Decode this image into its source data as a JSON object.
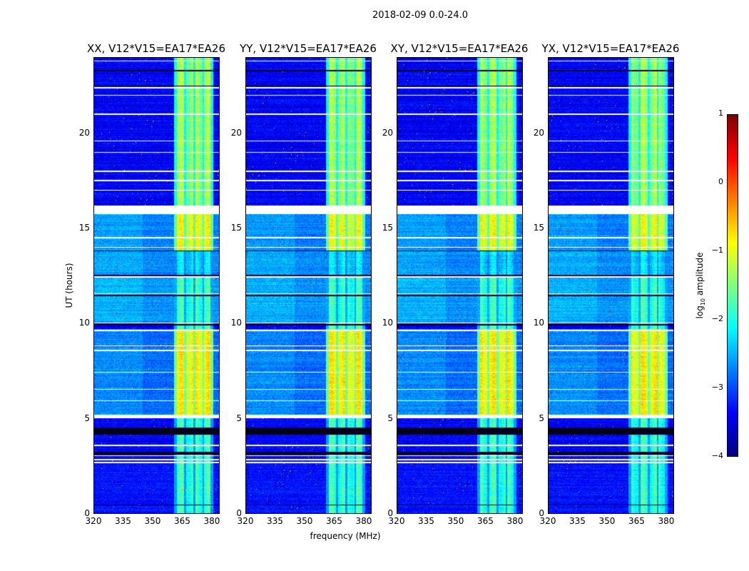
{
  "chart_data": {
    "type": "heatmap",
    "title": "2018-02-09 0.0-24.0",
    "panels": [
      {
        "title": "XX, V12*V15=EA17*EA26"
      },
      {
        "title": "YY, V12*V15=EA17*EA26"
      },
      {
        "title": "XY, V12*V15=EA17*EA26"
      },
      {
        "title": "YX, V12*V15=EA17*EA26"
      }
    ],
    "xlabel": "frequency (MHz)",
    "ylabel": "UT (hours)",
    "xlim": [
      320,
      384
    ],
    "ylim": [
      0,
      24
    ],
    "xticks": [
      "320",
      "335",
      "350",
      "365",
      "380"
    ],
    "xtick_values": [
      320,
      335,
      350,
      365,
      380
    ],
    "yticks": [
      "0",
      "5",
      "10",
      "15",
      "20"
    ],
    "ytick_values": [
      0,
      5,
      10,
      15,
      20
    ],
    "colorbar": {
      "label": "log₁₀ amplitude",
      "label_main": "log",
      "label_sub": "10",
      "label_rest": " amplitude",
      "range": [
        -4,
        1
      ],
      "ticks": [
        "1",
        "0",
        "−1",
        "−2",
        "−3",
        "−4"
      ],
      "tick_values": [
        1,
        0,
        -1,
        -2,
        -3,
        -4
      ],
      "colormap": "jet"
    },
    "bright_bands_mhz": [
      [
        362.5,
        366
      ],
      [
        367,
        371
      ],
      [
        372,
        375.5
      ],
      [
        376.5,
        379.5
      ]
    ],
    "background_segments": [
      {
        "from": 0,
        "to": 2.7,
        "level": -3.3,
        "band_level": -1.9
      },
      {
        "from": 2.7,
        "to": 5.0,
        "level": -3.4,
        "band_level": -1.9
      },
      {
        "from": 5.2,
        "to": 9.7,
        "level": -2.7,
        "band_level": -0.9
      },
      {
        "from": 9.7,
        "to": 10.0,
        "level": -3.4,
        "band_level": -1.8
      },
      {
        "from": 10.0,
        "to": 12.4,
        "level": -2.5,
        "band_level": -1.9
      },
      {
        "from": 12.5,
        "to": 13.8,
        "level": -2.55,
        "band_level": -2.3
      },
      {
        "from": 13.8,
        "to": 15.8,
        "level": -2.6,
        "band_level": -1.0
      },
      {
        "from": 16.2,
        "to": 24,
        "level": -3.4,
        "band_level": -1.4
      }
    ],
    "flagged_hours": [
      [
        5.02,
        5.2
      ],
      [
        16.0,
        16.2
      ],
      [
        15.75,
        15.8
      ],
      [
        12.4,
        12.45
      ],
      [
        11.55,
        11.6
      ],
      [
        10.0,
        10.05
      ],
      [
        9.6,
        9.65
      ],
      [
        8.8,
        8.85
      ],
      [
        8.55,
        8.6
      ],
      [
        7.4,
        7.45
      ],
      [
        6.5,
        6.55
      ],
      [
        5.9,
        5.95
      ],
      [
        3.55,
        3.6
      ],
      [
        3.0,
        3.05
      ],
      [
        2.8,
        2.85
      ],
      [
        2.65,
        2.7
      ],
      [
        14.0,
        14.05
      ],
      [
        14.5,
        14.55
      ],
      [
        17.0,
        17.05
      ],
      [
        17.5,
        17.55
      ],
      [
        18.0,
        18.05
      ],
      [
        19.0,
        19.05
      ],
      [
        19.6,
        19.65
      ],
      [
        21.0,
        21.05
      ],
      [
        22.0,
        22.05
      ],
      [
        22.4,
        22.45
      ],
      [
        23.8,
        23.85
      ]
    ],
    "dropout_hours": [
      [
        0.4,
        0.45
      ],
      [
        4.15,
        4.5
      ],
      [
        3.1,
        3.25
      ],
      [
        12.5,
        12.55
      ],
      [
        13.8,
        13.85
      ],
      [
        22.5,
        22.55
      ],
      [
        23.3,
        23.35
      ],
      [
        16.95,
        16.98
      ],
      [
        9.9,
        9.95
      ],
      [
        11.45,
        11.5
      ]
    ]
  }
}
